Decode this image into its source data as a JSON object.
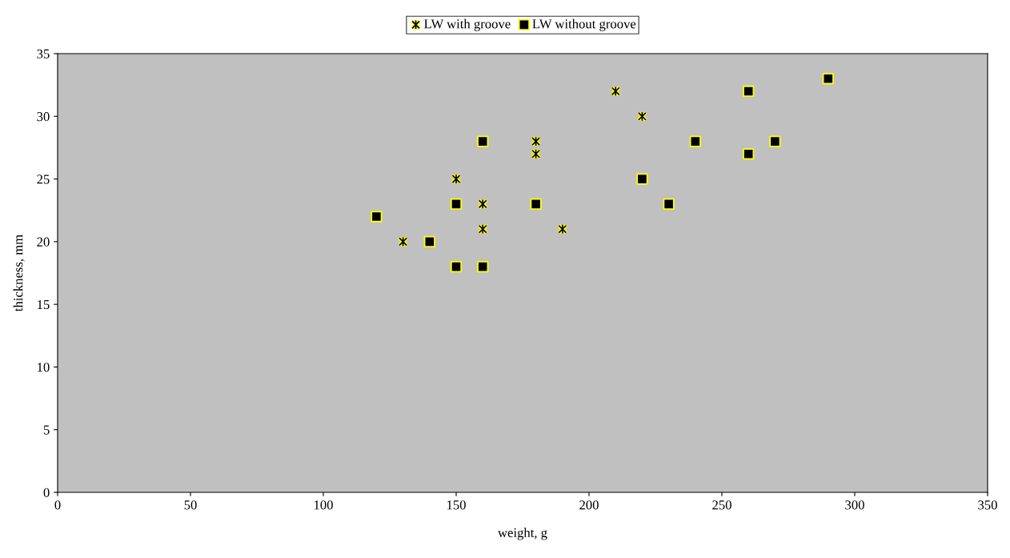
{
  "chart_data": {
    "type": "scatter",
    "xlabel": "weight, g",
    "ylabel": "thickness, mm",
    "xlim": [
      0,
      350
    ],
    "xticks": [
      0,
      50,
      100,
      150,
      200,
      250,
      300,
      350
    ],
    "ylim": [
      0,
      35
    ],
    "yticks": [
      0,
      5,
      10,
      15,
      20,
      25,
      30,
      35
    ],
    "grid": false,
    "legend": "top",
    "series": [
      {
        "name": "LW with groove",
        "color": "#000000",
        "marker": "cross",
        "x": [
          130,
          150,
          160,
          160,
          180,
          180,
          190,
          210,
          220
        ],
        "values": [
          20,
          25,
          23,
          21,
          28,
          27,
          21,
          32,
          30
        ]
      },
      {
        "name": "LW without groove",
        "color": "#000000",
        "marker": "square",
        "x": [
          120,
          140,
          150,
          150,
          160,
          160,
          180,
          220,
          230,
          240,
          260,
          260,
          270,
          290
        ],
        "values": [
          22,
          20,
          23,
          18,
          28,
          18,
          23,
          25,
          23,
          28,
          32,
          27,
          28,
          33
        ]
      }
    ]
  }
}
